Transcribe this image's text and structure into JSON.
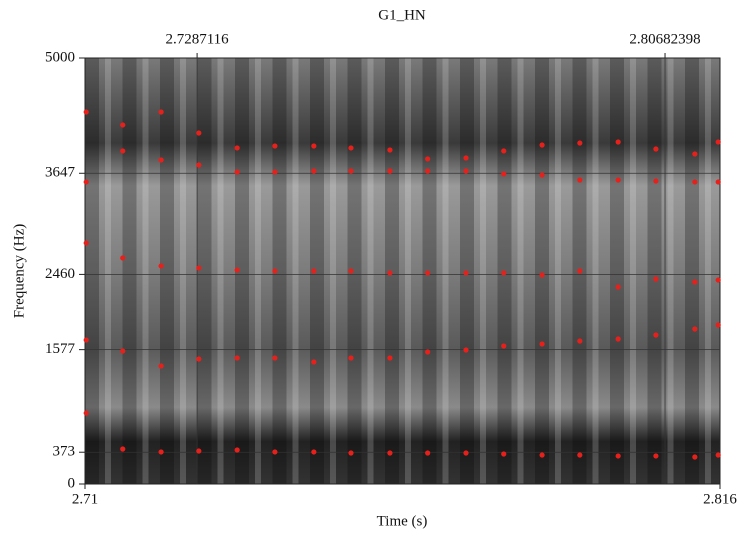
{
  "chart_data": {
    "type": "scatter",
    "title": "G1_HN",
    "xlabel": "Time (s)",
    "ylabel": "Frequency (Hz)",
    "xlim": [
      2.71,
      2.816
    ],
    "ylim": [
      0,
      5000
    ],
    "xticks": [
      2.71,
      2.816
    ],
    "top_xticks": [
      2.7287116,
      2.80682398
    ],
    "yticks": [
      0,
      373,
      1577,
      2460,
      3647,
      5000
    ],
    "grid": true,
    "x": [
      2.7102,
      2.7163,
      2.7227,
      2.729,
      2.7354,
      2.7417,
      2.7482,
      2.7544,
      2.7609,
      2.7672,
      2.7736,
      2.7799,
      2.7863,
      2.7926,
      2.799,
      2.8053,
      2.8118,
      2.8157
    ],
    "series": [
      {
        "color": "#e8201c",
        "values": [
          4366,
          4214,
          4366,
          4120,
          3944,
          3967,
          3967,
          3944,
          3920,
          3815,
          3826,
          3909,
          3979,
          4002,
          4014,
          3932,
          3873,
          4014
        ]
      },
      {
        "color": "#e8201c",
        "values": [
          3545,
          3909,
          3803,
          3744,
          3662,
          3662,
          3674,
          3674,
          3674,
          3674,
          3674,
          3639,
          3627,
          3568,
          3568,
          3556,
          3545,
          3545
        ]
      },
      {
        "color": "#e8201c",
        "values": [
          2829,
          2653,
          2559,
          2535,
          2512,
          2500,
          2500,
          2500,
          2477,
          2477,
          2477,
          2477,
          2453,
          2500,
          2312,
          2406,
          2371,
          2394
        ]
      },
      {
        "color": "#e8201c",
        "values": [
          1690,
          1561,
          1385,
          1467,
          1479,
          1479,
          1432,
          1479,
          1479,
          1549,
          1573,
          1620,
          1643,
          1678,
          1702,
          1749,
          1819,
          1866
        ]
      },
      {
        "color": "#e8201c",
        "values": [
          833,
          411,
          376,
          387,
          399,
          376,
          376,
          364,
          364,
          364,
          364,
          352,
          340,
          340,
          329,
          329,
          317,
          340
        ]
      }
    ]
  }
}
